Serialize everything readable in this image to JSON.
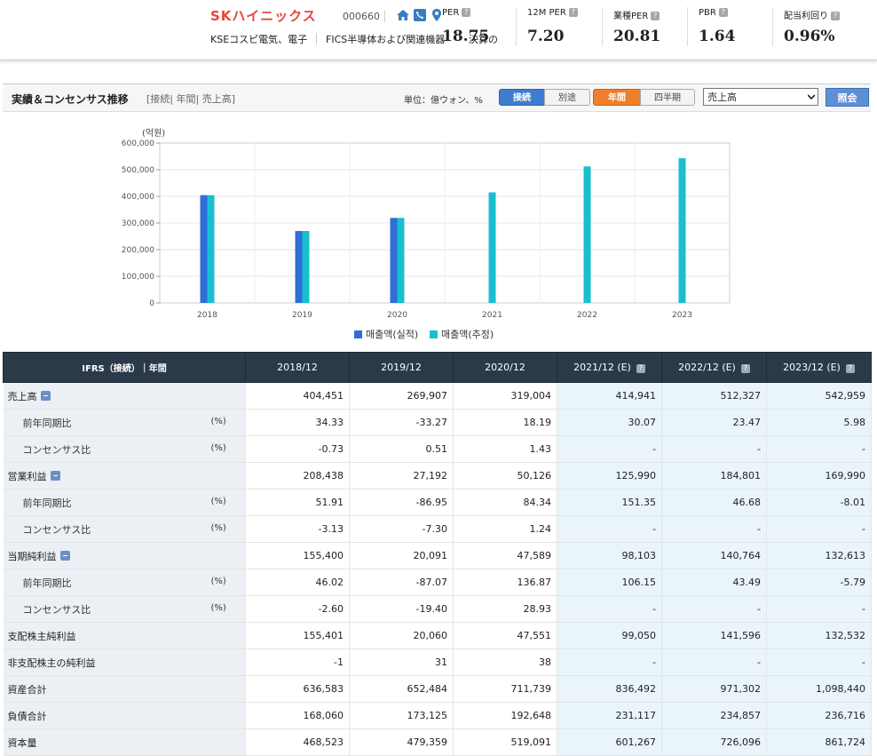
{
  "header": {
    "company": "SKハイニックス",
    "code": "000660",
    "sub_market": "KSEコスピ電気、電子",
    "sub_industry": "FICS半導体および関連機器",
    "sub_fiscal": "決算の",
    "metrics": [
      {
        "label": "PER",
        "value": "18.75"
      },
      {
        "label": "12M PER",
        "value": "7.20"
      },
      {
        "label": "業種PER",
        "value": "20.81"
      },
      {
        "label": "PBR",
        "value": "1.64"
      },
      {
        "label": "配当利回り",
        "value": "0.96%"
      }
    ]
  },
  "section": {
    "title": "実績＆コンセンサス推移",
    "breadcrumb": "[接続| 年間| 売上高]",
    "unit": "単位：億ウォン、%",
    "seg_consolidated": "接続",
    "seg_separate": "別途",
    "seg_annual": "年間",
    "seg_quarter": "四半期",
    "select_value": "売上高",
    "query_button": "照会"
  },
  "chart_data": {
    "type": "bar",
    "unit_label": "(억원)",
    "categories": [
      "2018",
      "2019",
      "2020",
      "2021",
      "2022",
      "2023"
    ],
    "series": [
      {
        "name": "매출액(실적)",
        "color": "#2f6fd6",
        "values": [
          404451,
          269907,
          319004,
          null,
          null,
          null
        ]
      },
      {
        "name": "매출액(추정)",
        "color": "#19bfcf",
        "values": [
          404451,
          269907,
          319004,
          414941,
          512327,
          542959
        ]
      }
    ],
    "ylim": [
      0,
      600000
    ],
    "yticks": [
      "0",
      "100,000",
      "200,000",
      "300,000",
      "400,000",
      "500,000",
      "600,000"
    ],
    "grid": true,
    "legend": "bottom"
  },
  "table": {
    "corner": "IFRS（接続）｜年間",
    "columns": [
      "2018/12",
      "2019/12",
      "2020/12",
      "2021/12 (E)",
      "2022/12 (E)",
      "2023/12 (E)"
    ],
    "rows": [
      {
        "label": "売上高",
        "toggle": true,
        "unit": "",
        "child": false,
        "values": [
          "404,451",
          "269,907",
          "319,004",
          "414,941",
          "512,327",
          "542,959"
        ]
      },
      {
        "label": "前年同期比",
        "unit": "(%)",
        "child": true,
        "values": [
          "34.33",
          "-33.27",
          "18.19",
          "30.07",
          "23.47",
          "5.98"
        ]
      },
      {
        "label": "コンセンサス比",
        "unit": "(%)",
        "child": true,
        "values": [
          "-0.73",
          "0.51",
          "1.43",
          "-",
          "-",
          "-"
        ]
      },
      {
        "label": "営業利益",
        "toggle": true,
        "unit": "",
        "child": false,
        "values": [
          "208,438",
          "27,192",
          "50,126",
          "125,990",
          "184,801",
          "169,990"
        ]
      },
      {
        "label": "前年同期比",
        "unit": "(%)",
        "child": true,
        "values": [
          "51.91",
          "-86.95",
          "84.34",
          "151.35",
          "46.68",
          "-8.01"
        ]
      },
      {
        "label": "コンセンサス比",
        "unit": "(%)",
        "child": true,
        "values": [
          "-3.13",
          "-7.30",
          "1.24",
          "-",
          "-",
          "-"
        ]
      },
      {
        "label": "当期純利益",
        "toggle": true,
        "unit": "",
        "child": false,
        "values": [
          "155,400",
          "20,091",
          "47,589",
          "98,103",
          "140,764",
          "132,613"
        ]
      },
      {
        "label": "前年同期比",
        "unit": "(%)",
        "child": true,
        "values": [
          "46.02",
          "-87.07",
          "136.87",
          "106.15",
          "43.49",
          "-5.79"
        ]
      },
      {
        "label": "コンセンサス比",
        "unit": "(%)",
        "child": true,
        "values": [
          "-2.60",
          "-19.40",
          "28.93",
          "-",
          "-",
          "-"
        ]
      },
      {
        "label": "支配株主純利益",
        "unit": "",
        "child": false,
        "values": [
          "155,401",
          "20,060",
          "47,551",
          "99,050",
          "141,596",
          "132,532"
        ]
      },
      {
        "label": "非支配株主の純利益",
        "unit": "",
        "child": false,
        "values": [
          "-1",
          "31",
          "38",
          "-",
          "-",
          "-"
        ]
      },
      {
        "label": "資産合計",
        "unit": "",
        "child": false,
        "values": [
          "636,583",
          "652,484",
          "711,739",
          "836,492",
          "971,302",
          "1,098,440"
        ]
      },
      {
        "label": "負債合計",
        "unit": "",
        "child": false,
        "values": [
          "168,060",
          "173,125",
          "192,648",
          "231,117",
          "234,857",
          "236,716"
        ]
      },
      {
        "label": "資本量",
        "unit": "",
        "child": false,
        "values": [
          "468,523",
          "479,359",
          "519,091",
          "601,267",
          "726,096",
          "861,724"
        ]
      }
    ]
  }
}
